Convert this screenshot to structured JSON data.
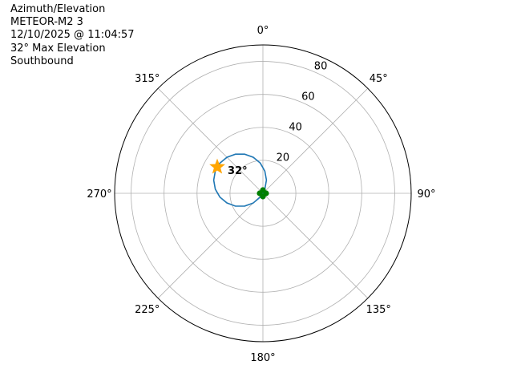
{
  "title_lines": [
    "Azimuth/Elevation",
    "METEOR-M2 3",
    "12/10/2025 @ 11:04:57",
    "32° Max Elevation",
    "Southbound"
  ],
  "chart_data": {
    "type": "polar-line",
    "theta_zero": "N",
    "theta_direction": "clockwise",
    "rlim": [
      0,
      90
    ],
    "r_ticks": [
      20,
      40,
      60,
      80
    ],
    "r_tick_labels": [
      "20",
      "40",
      "60",
      "80"
    ],
    "theta_ticks": [
      0,
      45,
      90,
      135,
      180,
      225,
      270,
      315
    ],
    "theta_tick_labels": [
      "0°",
      "45°",
      "90°",
      "135°",
      "180°",
      "225°",
      "270°",
      "315°"
    ],
    "grid": true,
    "series": [
      {
        "color": "#1f77b4",
        "azimuth": [
          210,
          215,
          225,
          235,
          245,
          255,
          265,
          275,
          285,
          295,
          305,
          315,
          325,
          335,
          345,
          355,
          5,
          15,
          25,
          30
        ],
        "elevation": [
          0,
          2.8,
          8.3,
          13.5,
          18.4,
          22.6,
          26.2,
          29.0,
          30.9,
          31.9,
          31.9,
          30.9,
          29.0,
          26.2,
          22.6,
          18.4,
          13.5,
          8.3,
          2.8,
          0
        ]
      }
    ],
    "markers": [
      {
        "type": "star",
        "color": "#ffa500",
        "azimuth": 300,
        "elevation": 32,
        "label": "32°"
      },
      {
        "type": "clover",
        "color": "#008000",
        "azimuth": 0,
        "elevation": 0
      }
    ]
  }
}
